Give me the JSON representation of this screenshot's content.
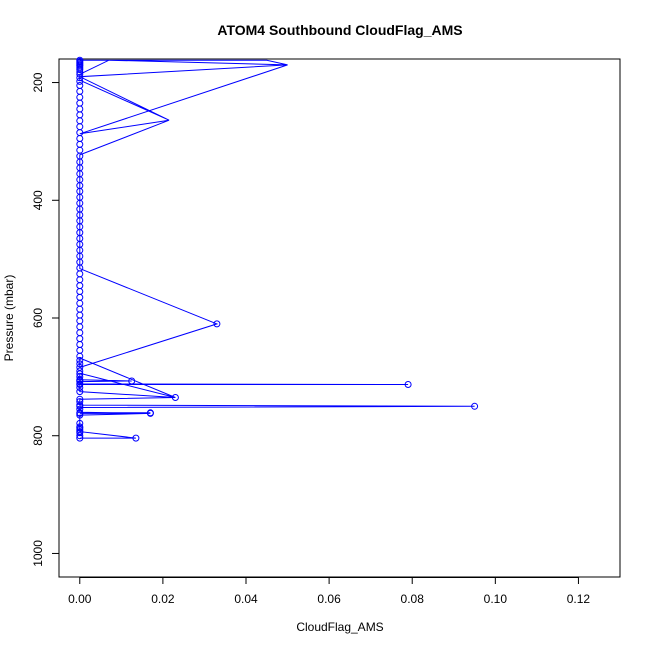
{
  "chart_data": {
    "type": "line",
    "title": "ATOM4 Southbound CloudFlag_AMS",
    "xlabel": "CloudFlag_AMS",
    "ylabel": "Pressure (mbar)",
    "xlim": [
      -0.005,
      0.13
    ],
    "ylim": [
      1040,
      160
    ],
    "y_reversed": true,
    "xticks": [
      0.0,
      0.02,
      0.04,
      0.06,
      0.08,
      0.1,
      0.12
    ],
    "xtick_labels": [
      "0.00",
      "0.02",
      "0.04",
      "0.06",
      "0.08",
      "0.10",
      "0.12"
    ],
    "yticks": [
      200,
      400,
      600,
      800,
      1000
    ],
    "ytick_labels": [
      "200",
      "400",
      "600",
      "800",
      "1000"
    ],
    "grid": false,
    "series": [
      {
        "color": "#0000ff",
        "marker": "open-circle",
        "points": [
          [
            0.0,
            804
          ],
          [
            0.0,
            800
          ],
          [
            0.0,
            795
          ],
          [
            0.0,
            790
          ],
          [
            0.0,
            785
          ],
          [
            0.0,
            779
          ],
          [
            0.0135,
            804
          ],
          [
            0.0,
            793
          ],
          [
            0.0,
            787
          ],
          [
            0.0,
            765
          ],
          [
            0.017,
            762
          ],
          [
            0.0,
            761
          ],
          [
            0.017,
            761
          ],
          [
            0.0,
            762
          ],
          [
            0.0,
            755
          ],
          [
            0.0,
            750
          ],
          [
            0.095,
            750
          ],
          [
            0.0,
            748
          ],
          [
            0.0,
            742
          ],
          [
            0.0,
            738
          ],
          [
            0.023,
            735
          ],
          [
            0.0,
            725
          ],
          [
            0.0,
            718
          ],
          [
            0.0,
            713
          ],
          [
            0.079,
            713
          ],
          [
            0.0,
            712
          ],
          [
            0.0,
            708
          ],
          [
            0.0,
            706
          ],
          [
            0.0125,
            707
          ],
          [
            0.0,
            705
          ],
          [
            0.0,
            700
          ],
          [
            0.0,
            695
          ],
          [
            0.0,
            690
          ],
          [
            0.0,
            684
          ],
          [
            0.0,
            678
          ],
          [
            0.033,
            610
          ],
          [
            0.0,
            672
          ],
          [
            0.0,
            665
          ],
          [
            0.0,
            655
          ],
          [
            0.0,
            645
          ],
          [
            0.0,
            635
          ],
          [
            0.0,
            625
          ],
          [
            0.0,
            615
          ],
          [
            0.0,
            605
          ],
          [
            0.0,
            595
          ],
          [
            0.0,
            585
          ],
          [
            0.0,
            575
          ],
          [
            0.0,
            565
          ],
          [
            0.0,
            555
          ],
          [
            0.0,
            545
          ],
          [
            0.0,
            535
          ],
          [
            0.0,
            525
          ],
          [
            0.0,
            515
          ],
          [
            0.0,
            505
          ],
          [
            0.0,
            495
          ],
          [
            0.0,
            485
          ],
          [
            0.0,
            475
          ],
          [
            0.0,
            465
          ],
          [
            0.0,
            455
          ],
          [
            0.0,
            445
          ],
          [
            0.0,
            435
          ],
          [
            0.0,
            425
          ],
          [
            0.0,
            415
          ],
          [
            0.0,
            405
          ],
          [
            0.0,
            395
          ],
          [
            0.0,
            385
          ],
          [
            0.0,
            375
          ],
          [
            0.0,
            365
          ],
          [
            0.0,
            355
          ],
          [
            0.0,
            345
          ],
          [
            0.0,
            335
          ],
          [
            0.0,
            325
          ],
          [
            0.0,
            315
          ],
          [
            0.0,
            305
          ],
          [
            0.0,
            295
          ],
          [
            0.0,
            285
          ],
          [
            0.0,
            275
          ],
          [
            0.0,
            265
          ],
          [
            0.0,
            255
          ],
          [
            0.0,
            245
          ],
          [
            0.0,
            235
          ],
          [
            0.0,
            225
          ],
          [
            0.0,
            215
          ],
          [
            0.0,
            205
          ],
          [
            0.0,
            198
          ],
          [
            0.0,
            192
          ],
          [
            0.0,
            186
          ],
          [
            0.0,
            182
          ],
          [
            0.0,
            178
          ],
          [
            0.0,
            175
          ],
          [
            0.0,
            172
          ],
          [
            0.0,
            170
          ],
          [
            0.0,
            168
          ],
          [
            0.0,
            166
          ],
          [
            0.0,
            164
          ],
          [
            0.0,
            162
          ]
        ],
        "path": [
          [
            0.0,
            804
          ],
          [
            0.0135,
            804
          ],
          [
            0.0,
            793
          ],
          [
            0.0,
            787
          ],
          [
            0.0,
            779
          ],
          [
            0.0,
            765
          ],
          [
            0.017,
            762
          ],
          [
            0.0,
            761
          ],
          [
            0.017,
            761
          ],
          [
            0.0,
            762
          ],
          [
            0.017,
            762
          ],
          [
            0.0,
            760
          ],
          [
            0.0,
            752
          ],
          [
            0.095,
            750
          ],
          [
            0.0,
            748
          ],
          [
            0.0,
            738
          ],
          [
            0.023,
            735
          ],
          [
            0.0,
            725
          ],
          [
            0.0,
            713
          ],
          [
            0.079,
            713
          ],
          [
            0.0,
            712
          ],
          [
            0.0,
            708
          ],
          [
            0.0125,
            707
          ],
          [
            0.0,
            705
          ],
          [
            0.0,
            694
          ],
          [
            0.023,
            735
          ],
          [
            0.0,
            668
          ],
          [
            0.0,
            684
          ],
          [
            0.033,
            610
          ],
          [
            0.0,
            516
          ],
          [
            0.0,
            470
          ],
          [
            0.0,
            420
          ],
          [
            0.0,
            360
          ],
          [
            0.0,
            323
          ],
          [
            0.0215,
            264
          ],
          [
            0.0,
            287
          ],
          [
            0.05,
            170
          ],
          [
            0.0,
            190
          ],
          [
            0.0215,
            264
          ],
          [
            0.0,
            196
          ],
          [
            0.0,
            186
          ],
          [
            0.007,
            162
          ],
          [
            0.05,
            170
          ],
          [
            0.045,
            162
          ],
          [
            0.0,
            162
          ]
        ]
      }
    ]
  }
}
